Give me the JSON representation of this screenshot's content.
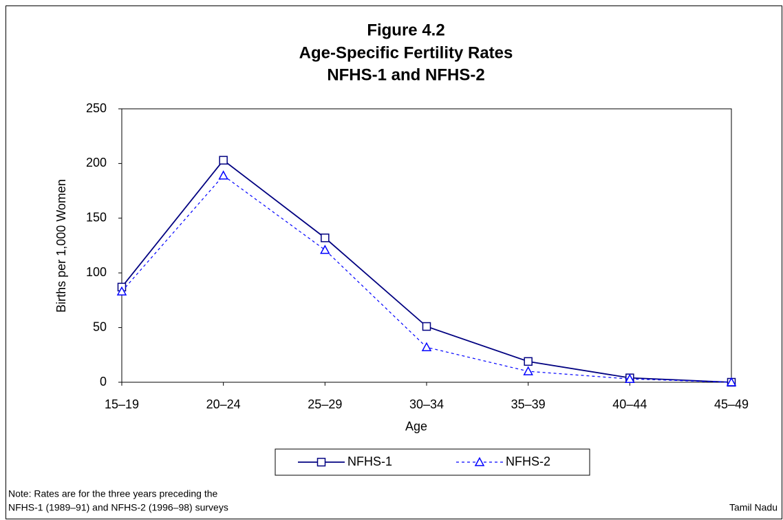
{
  "chart_data": {
    "type": "line",
    "title_lines": [
      "Figure 4.2",
      "Age-Specific Fertility Rates",
      "NFHS-1 and NFHS-2"
    ],
    "x_label": "Age",
    "y_label": "Births per 1,000 Women",
    "categories": [
      "15–19",
      "20–24",
      "25–29",
      "30–34",
      "35–39",
      "40–44",
      "45–49"
    ],
    "series": [
      {
        "name": "NFHS-1",
        "color": "#000080",
        "marker": "square",
        "dashed": false,
        "values": [
          87,
          203,
          132,
          51,
          19,
          4,
          0
        ]
      },
      {
        "name": "NFHS-2",
        "color": "#0000ff",
        "marker": "triangle",
        "dashed": true,
        "values": [
          83,
          189,
          121,
          32,
          10,
          3,
          0
        ]
      }
    ],
    "ylim": [
      0,
      250
    ],
    "yticks": [
      0,
      50,
      100,
      150,
      200,
      250
    ],
    "grid": false,
    "legend": "bottom",
    "notes": [
      "Note: Rates are for the three years preceding the",
      "NFHS-1 (1989–91) and NFHS-2 (1996–98) surveys"
    ],
    "region": "Tamil Nadu"
  }
}
